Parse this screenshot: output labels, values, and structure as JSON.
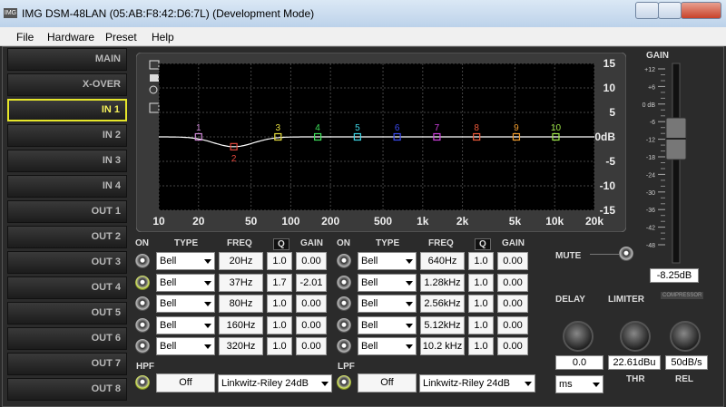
{
  "window": {
    "title": "IMG DSM-48LAN (05:AB:F8:42:D6:7L) (Development Mode)",
    "icon": "IMG"
  },
  "menu": [
    "File",
    "Hardware",
    "Preset",
    "Help"
  ],
  "sidebar": {
    "items": [
      "MAIN",
      "X-OVER",
      "IN 1",
      "IN 2",
      "IN 3",
      "IN 4",
      "OUT 1",
      "OUT 2",
      "OUT 3",
      "OUT 4",
      "OUT 5",
      "OUT 6",
      "OUT 7",
      "OUT 8"
    ],
    "active_index": 2
  },
  "eq_graph": {
    "type": "line",
    "xscale": "log",
    "xlim": [
      10,
      20000
    ],
    "ylim": [
      -15,
      15
    ],
    "xticks": [
      10,
      20,
      50,
      100,
      200,
      500,
      {
        "value": 1000,
        "label": "1k"
      },
      {
        "value": 2000,
        "label": "2k"
      },
      {
        "value": 5000,
        "label": "5k"
      },
      {
        "value": 10000,
        "label": "10k"
      },
      {
        "value": 20000,
        "label": "20k"
      }
    ],
    "yticks": [
      15,
      10,
      5,
      {
        "value": 0,
        "label": "0dB"
      },
      -5,
      -10,
      -15
    ],
    "grid": true,
    "curve_color": "#ffffff",
    "markers": [
      {
        "label": "1",
        "x": 20,
        "y": 0,
        "color": "#d08ad8"
      },
      {
        "label": "2",
        "x": 37,
        "y": -2.01,
        "color": "#e0463c"
      },
      {
        "label": "3",
        "x": 80,
        "y": 0,
        "color": "#e8e040"
      },
      {
        "label": "4",
        "x": 160,
        "y": 0,
        "color": "#3ee05a"
      },
      {
        "label": "5",
        "x": 320,
        "y": 0,
        "color": "#3ed6e6"
      },
      {
        "label": "6",
        "x": 640,
        "y": 0,
        "color": "#3a4af0"
      },
      {
        "label": "7",
        "x": 1280,
        "y": 0,
        "color": "#d040e0"
      },
      {
        "label": "8",
        "x": 2560,
        "y": 0,
        "color": "#f05a3a"
      },
      {
        "label": "9",
        "x": 5120,
        "y": 0,
        "color": "#f09a2a"
      },
      {
        "label": "10",
        "x": 10200,
        "y": 0,
        "color": "#9ee848"
      }
    ]
  },
  "eq_table": {
    "headers": [
      "ON",
      "TYPE",
      "FREQ",
      "Q",
      "GAIN"
    ],
    "left_rows": [
      [
        "Bell",
        "20Hz",
        "1.0",
        "0.00"
      ],
      [
        "Bell",
        "37Hz",
        "1.7",
        "-2.01"
      ],
      [
        "Bell",
        "80Hz",
        "1.0",
        "0.00"
      ],
      [
        "Bell",
        "160Hz",
        "1.0",
        "0.00"
      ],
      [
        "Bell",
        "320Hz",
        "1.0",
        "0.00"
      ]
    ],
    "right_rows": [
      [
        "Bell",
        "640Hz",
        "1.0",
        "0.00"
      ],
      [
        "Bell",
        "1.28kHz",
        "1.0",
        "0.00"
      ],
      [
        "Bell",
        "2.56kHz",
        "1.0",
        "0.00"
      ],
      [
        "Bell",
        "5.12kHz",
        "1.0",
        "0.00"
      ],
      [
        "Bell",
        "10.2 kHz",
        "1.0",
        "0.00"
      ]
    ],
    "left_on": [
      false,
      true,
      false,
      false,
      false
    ],
    "right_on": [
      false,
      false,
      false,
      false,
      false
    ]
  },
  "filters": {
    "hpf": {
      "label": "HPF",
      "state": "Off",
      "type": "Linkwitz-Riley 24dB",
      "on": true
    },
    "lpf": {
      "label": "LPF",
      "state": "Off",
      "type": "Linkwitz-Riley 24dB",
      "on": true
    }
  },
  "gain": {
    "label": "GAIN",
    "scale": [
      "+12",
      "+6",
      "0 dB",
      "-6",
      "-12",
      "-18",
      "-24",
      "-30",
      "-36",
      "-42",
      "-48"
    ],
    "value": "-8.25dB"
  },
  "mute": "MUTE",
  "dynamics": {
    "delay": "DELAY",
    "limiter": "LIMITER",
    "compressor": "COMPRESSOR",
    "delay_value": "0.0",
    "delay_unit": "ms",
    "threshold": "22.61dBu",
    "threshold_label": "THR",
    "release": "50dB/s",
    "release_label": "REL"
  }
}
